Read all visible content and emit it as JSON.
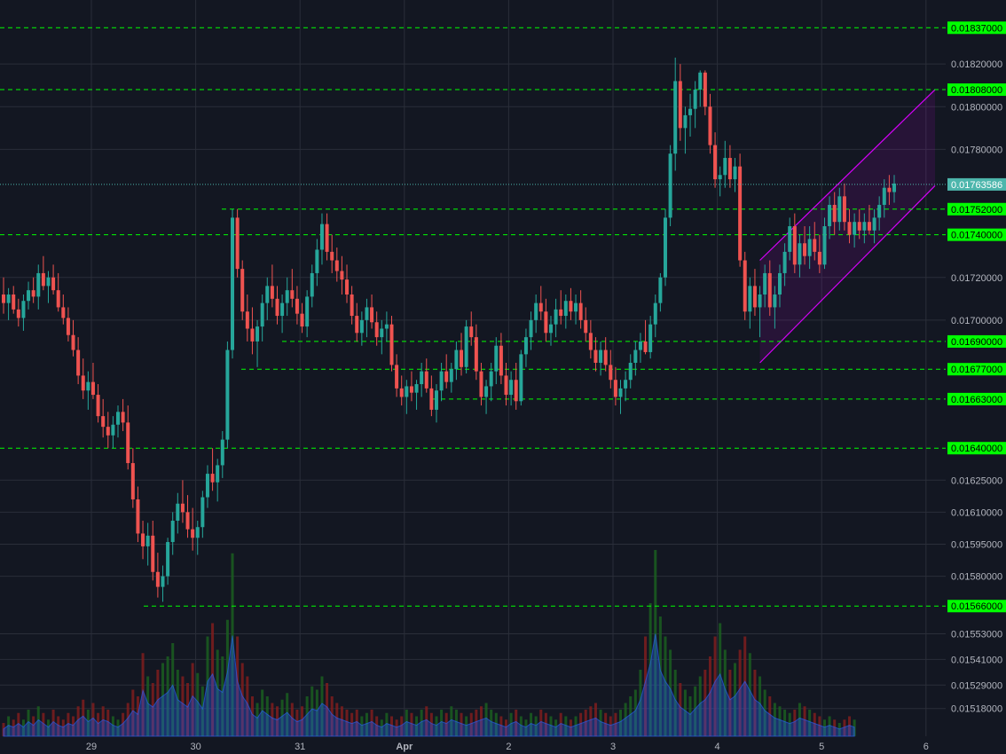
{
  "colors": {
    "background": "#131722",
    "grid": "#2a2e39",
    "axis_text": "#b2b5be",
    "up": "#26a69a",
    "down": "#ef5350",
    "level_line": "#00ff00",
    "level_label_bg": "#00ff00",
    "channel": "#d500f9",
    "price_line": "#4db6ac",
    "volume_area": "#2962ff",
    "volume_up": "#1b5e20",
    "volume_down": "#7f1d1d"
  },
  "chart_data": {
    "type": "candlestick",
    "symbol_interval_hours": 1,
    "ylim": [
      0.01505,
      0.0185
    ],
    "y_ticks": [
      "0.01820000",
      "0.01800000",
      "0.01780000",
      "0.01720000",
      "0.01700000",
      "0.01625000",
      "0.01610000",
      "0.01595000",
      "0.01580000",
      "0.01553000",
      "0.01541000",
      "0.01529000",
      "0.01518000"
    ],
    "x_ticks": [
      "29",
      "30",
      "31",
      "Apr",
      "2",
      "3",
      "4",
      "5",
      "6"
    ],
    "levels": [
      {
        "label": "0.01837000",
        "value": 0.01837
      },
      {
        "label": "0.01808000",
        "value": 0.01808
      },
      {
        "label": "0.01752000",
        "value": 0.01752
      },
      {
        "label": "0.01740000",
        "value": 0.0174
      },
      {
        "label": "0.01690000",
        "value": 0.0169
      },
      {
        "label": "0.01677000",
        "value": 0.01677
      },
      {
        "label": "0.01663000",
        "value": 0.01663
      },
      {
        "label": "0.01640000",
        "value": 0.0164
      },
      {
        "label": "0.01566000",
        "value": 0.01566
      }
    ],
    "current_price": {
      "label": "0.01763586",
      "value": 0.01763586
    },
    "channel": {
      "upper": [
        [
          0.01729,
          0.01808
        ],
        [
          0.0173,
          0.018
        ]
      ],
      "lower": [
        [
          0.0168,
          0.0176
        ],
        [
          0.0168,
          0.01763
        ]
      ]
    },
    "candles": [
      [
        0.01712,
        0.0172,
        0.01703,
        0.01708
      ],
      [
        0.01708,
        0.01715,
        0.017,
        0.01712
      ],
      [
        0.01712,
        0.01716,
        0.01703,
        0.01705
      ],
      [
        0.01705,
        0.0171,
        0.01697,
        0.01701
      ],
      [
        0.01701,
        0.01712,
        0.01695,
        0.01709
      ],
      [
        0.01709,
        0.01718,
        0.01705,
        0.01714
      ],
      [
        0.01714,
        0.0172,
        0.01708,
        0.01711
      ],
      [
        0.01711,
        0.01726,
        0.01705,
        0.01722
      ],
      [
        0.01722,
        0.0173,
        0.01714,
        0.01716
      ],
      [
        0.01716,
        0.01723,
        0.01708,
        0.0172
      ],
      [
        0.0172,
        0.01726,
        0.01712,
        0.01714
      ],
      [
        0.01714,
        0.01722,
        0.01704,
        0.01706
      ],
      [
        0.01706,
        0.01712,
        0.01698,
        0.01701
      ],
      [
        0.01701,
        0.01706,
        0.0169,
        0.01693
      ],
      [
        0.01693,
        0.017,
        0.01683,
        0.01686
      ],
      [
        0.01686,
        0.01692,
        0.0167,
        0.01674
      ],
      [
        0.01674,
        0.01682,
        0.01663,
        0.01667
      ],
      [
        0.01667,
        0.01676,
        0.01658,
        0.01671
      ],
      [
        0.01671,
        0.0168,
        0.01663,
        0.01665
      ],
      [
        0.01665,
        0.0167,
        0.01652,
        0.01655
      ],
      [
        0.01655,
        0.01663,
        0.01645,
        0.0165
      ],
      [
        0.0165,
        0.01657,
        0.0164,
        0.01646
      ],
      [
        0.01646,
        0.01655,
        0.0164,
        0.01651
      ],
      [
        0.01651,
        0.0166,
        0.01645,
        0.01657
      ],
      [
        0.01657,
        0.01663,
        0.01648,
        0.01652
      ],
      [
        0.01652,
        0.0166,
        0.0163,
        0.01633
      ],
      [
        0.01633,
        0.0164,
        0.01612,
        0.01616
      ],
      [
        0.01616,
        0.01622,
        0.01596,
        0.016
      ],
      [
        0.016,
        0.01606,
        0.01588,
        0.01594
      ],
      [
        0.01594,
        0.01605,
        0.01585,
        0.01599
      ],
      [
        0.01599,
        0.01606,
        0.01578,
        0.01582
      ],
      [
        0.01582,
        0.01591,
        0.0157,
        0.01575
      ],
      [
        0.01575,
        0.01585,
        0.01568,
        0.0158
      ],
      [
        0.0158,
        0.01598,
        0.01576,
        0.01596
      ],
      [
        0.01596,
        0.0161,
        0.0159,
        0.01606
      ],
      [
        0.01606,
        0.01619,
        0.016,
        0.01614
      ],
      [
        0.01614,
        0.01625,
        0.01605,
        0.0161
      ],
      [
        0.0161,
        0.01618,
        0.01598,
        0.01602
      ],
      [
        0.01602,
        0.01612,
        0.01592,
        0.01598
      ],
      [
        0.01598,
        0.01606,
        0.0159,
        0.01603
      ],
      [
        0.01603,
        0.0162,
        0.01598,
        0.01617
      ],
      [
        0.01617,
        0.01632,
        0.01612,
        0.01628
      ],
      [
        0.01628,
        0.0164,
        0.0162,
        0.01624
      ],
      [
        0.01624,
        0.01635,
        0.01615,
        0.01632
      ],
      [
        0.01632,
        0.01648,
        0.01626,
        0.01644
      ],
      [
        0.01644,
        0.0169,
        0.0164,
        0.01686
      ],
      [
        0.01686,
        0.01752,
        0.01682,
        0.01748
      ],
      [
        0.01748,
        0.01752,
        0.0172,
        0.01724
      ],
      [
        0.01724,
        0.01728,
        0.017,
        0.01704
      ],
      [
        0.01704,
        0.01712,
        0.0169,
        0.01696
      ],
      [
        0.01696,
        0.01706,
        0.01684,
        0.0169
      ],
      [
        0.0169,
        0.017,
        0.01678,
        0.01697
      ],
      [
        0.01697,
        0.01712,
        0.0169,
        0.01708
      ],
      [
        0.01708,
        0.0172,
        0.017,
        0.01716
      ],
      [
        0.01716,
        0.01726,
        0.01706,
        0.0171
      ],
      [
        0.0171,
        0.01716,
        0.01698,
        0.01702
      ],
      [
        0.01702,
        0.01712,
        0.01694,
        0.01708
      ],
      [
        0.01708,
        0.0172,
        0.01702,
        0.01714
      ],
      [
        0.01714,
        0.01724,
        0.01706,
        0.0171
      ],
      [
        0.0171,
        0.01716,
        0.01698,
        0.01703
      ],
      [
        0.01703,
        0.01708,
        0.01694,
        0.01697
      ],
      [
        0.01697,
        0.01714,
        0.01692,
        0.01711
      ],
      [
        0.01711,
        0.01726,
        0.01706,
        0.01722
      ],
      [
        0.01722,
        0.01738,
        0.01716,
        0.01733
      ],
      [
        0.01733,
        0.0175,
        0.01726,
        0.01745
      ],
      [
        0.01745,
        0.0175,
        0.01728,
        0.01732
      ],
      [
        0.01732,
        0.0174,
        0.01722,
        0.01728
      ],
      [
        0.01728,
        0.01734,
        0.01718,
        0.01723
      ],
      [
        0.01723,
        0.0173,
        0.01712,
        0.01719
      ],
      [
        0.01719,
        0.01726,
        0.01708,
        0.01712
      ],
      [
        0.01712,
        0.01716,
        0.01698,
        0.01702
      ],
      [
        0.01702,
        0.01708,
        0.0169,
        0.01694
      ],
      [
        0.01694,
        0.01704,
        0.01688,
        0.017
      ],
      [
        0.017,
        0.0171,
        0.01692,
        0.01706
      ],
      [
        0.01706,
        0.01712,
        0.01696,
        0.01699
      ],
      [
        0.01699,
        0.01704,
        0.01688,
        0.01692
      ],
      [
        0.01692,
        0.017,
        0.01684,
        0.01696
      ],
      [
        0.01696,
        0.01704,
        0.0169,
        0.01698
      ],
      [
        0.01698,
        0.01702,
        0.01676,
        0.01679
      ],
      [
        0.01679,
        0.01684,
        0.01664,
        0.01668
      ],
      [
        0.01668,
        0.01674,
        0.0166,
        0.01664
      ],
      [
        0.01664,
        0.01672,
        0.01656,
        0.01669
      ],
      [
        0.01669,
        0.01676,
        0.01662,
        0.01666
      ],
      [
        0.01666,
        0.01672,
        0.01658,
        0.0167
      ],
      [
        0.0167,
        0.0168,
        0.01664,
        0.01676
      ],
      [
        0.01676,
        0.01682,
        0.01666,
        0.01668
      ],
      [
        0.01668,
        0.01674,
        0.01655,
        0.01658
      ],
      [
        0.01658,
        0.0167,
        0.01652,
        0.01667
      ],
      [
        0.01667,
        0.0168,
        0.01662,
        0.01676
      ],
      [
        0.01676,
        0.01684,
        0.01668,
        0.01671
      ],
      [
        0.01671,
        0.0168,
        0.01666,
        0.01677
      ],
      [
        0.01677,
        0.0169,
        0.01672,
        0.01686
      ],
      [
        0.01686,
        0.01694,
        0.01674,
        0.01678
      ],
      [
        0.01678,
        0.017,
        0.01675,
        0.01697
      ],
      [
        0.01697,
        0.01704,
        0.01688,
        0.01692
      ],
      [
        0.01692,
        0.01698,
        0.01672,
        0.01676
      ],
      [
        0.01676,
        0.0168,
        0.0166,
        0.01664
      ],
      [
        0.01664,
        0.01672,
        0.01656,
        0.01669
      ],
      [
        0.01669,
        0.0168,
        0.01662,
        0.01676
      ],
      [
        0.01676,
        0.01692,
        0.0167,
        0.01688
      ],
      [
        0.01688,
        0.01694,
        0.0167,
        0.01674
      ],
      [
        0.01674,
        0.0168,
        0.0166,
        0.01665
      ],
      [
        0.01665,
        0.01676,
        0.0166,
        0.01672
      ],
      [
        0.01672,
        0.0168,
        0.01658,
        0.01662
      ],
      [
        0.01662,
        0.01686,
        0.0166,
        0.01684
      ],
      [
        0.01684,
        0.01696,
        0.01678,
        0.01692
      ],
      [
        0.01692,
        0.01704,
        0.01686,
        0.017
      ],
      [
        0.017,
        0.01712,
        0.01694,
        0.01708
      ],
      [
        0.01708,
        0.01716,
        0.017,
        0.01704
      ],
      [
        0.01704,
        0.0171,
        0.0169,
        0.01694
      ],
      [
        0.01694,
        0.01702,
        0.01688,
        0.01698
      ],
      [
        0.01698,
        0.0171,
        0.01692,
        0.01705
      ],
      [
        0.01705,
        0.01714,
        0.01698,
        0.01702
      ],
      [
        0.01702,
        0.01712,
        0.01696,
        0.01709
      ],
      [
        0.01709,
        0.01715,
        0.017,
        0.01704
      ],
      [
        0.01704,
        0.01712,
        0.01698,
        0.01708
      ],
      [
        0.01708,
        0.01714,
        0.01696,
        0.017
      ],
      [
        0.017,
        0.01706,
        0.0169,
        0.01694
      ],
      [
        0.01694,
        0.017,
        0.01682,
        0.01686
      ],
      [
        0.01686,
        0.01692,
        0.01676,
        0.0168
      ],
      [
        0.0168,
        0.0169,
        0.01674,
        0.01686
      ],
      [
        0.01686,
        0.01692,
        0.01676,
        0.01679
      ],
      [
        0.01679,
        0.01686,
        0.01668,
        0.01672
      ],
      [
        0.01672,
        0.01678,
        0.0166,
        0.01664
      ],
      [
        0.01664,
        0.01672,
        0.01656,
        0.01668
      ],
      [
        0.01668,
        0.01676,
        0.01662,
        0.01672
      ],
      [
        0.01672,
        0.01684,
        0.01668,
        0.0168
      ],
      [
        0.0168,
        0.0169,
        0.01674,
        0.01686
      ],
      [
        0.01686,
        0.01694,
        0.0168,
        0.0169
      ],
      [
        0.0169,
        0.017,
        0.01684,
        0.01685
      ],
      [
        0.01685,
        0.01702,
        0.01682,
        0.01698
      ],
      [
        0.01698,
        0.01712,
        0.01692,
        0.01708
      ],
      [
        0.01708,
        0.01722,
        0.01704,
        0.0172
      ],
      [
        0.0172,
        0.01752,
        0.01716,
        0.01748
      ],
      [
        0.01748,
        0.01782,
        0.01744,
        0.01778
      ],
      [
        0.01778,
        0.01823,
        0.0177,
        0.01812
      ],
      [
        0.01812,
        0.0182,
        0.01784,
        0.0179
      ],
      [
        0.0179,
        0.018,
        0.01778,
        0.01796
      ],
      [
        0.01796,
        0.01806,
        0.01786,
        0.01799
      ],
      [
        0.01799,
        0.01812,
        0.0179,
        0.01808
      ],
      [
        0.01808,
        0.01817,
        0.018,
        0.01816
      ],
      [
        0.01816,
        0.01817,
        0.01796,
        0.018
      ],
      [
        0.018,
        0.01806,
        0.01778,
        0.01782
      ],
      [
        0.01782,
        0.01788,
        0.01762,
        0.01766
      ],
      [
        0.01766,
        0.01772,
        0.01758,
        0.01768
      ],
      [
        0.01768,
        0.01784,
        0.01762,
        0.01776
      ],
      [
        0.01776,
        0.01782,
        0.01762,
        0.01766
      ],
      [
        0.01766,
        0.01776,
        0.0176,
        0.01772
      ],
      [
        0.01772,
        0.01778,
        0.01725,
        0.01728
      ],
      [
        0.01728,
        0.01732,
        0.017,
        0.01704
      ],
      [
        0.01704,
        0.0172,
        0.01696,
        0.01716
      ],
      [
        0.01716,
        0.01724,
        0.01702,
        0.01706
      ],
      [
        0.01706,
        0.01716,
        0.01692,
        0.01712
      ],
      [
        0.01712,
        0.01726,
        0.01706,
        0.01722
      ],
      [
        0.01722,
        0.01728,
        0.01702,
        0.01706
      ],
      [
        0.01706,
        0.01716,
        0.01696,
        0.01712
      ],
      [
        0.01712,
        0.01726,
        0.01706,
        0.01722
      ],
      [
        0.01722,
        0.01736,
        0.01716,
        0.01732
      ],
      [
        0.01732,
        0.01748,
        0.01728,
        0.01744
      ],
      [
        0.01744,
        0.0175,
        0.01722,
        0.01726
      ],
      [
        0.01726,
        0.0174,
        0.0172,
        0.01736
      ],
      [
        0.01736,
        0.01744,
        0.01726,
        0.0173
      ],
      [
        0.0173,
        0.01744,
        0.01724,
        0.01738
      ],
      [
        0.01738,
        0.01746,
        0.01728,
        0.01732
      ],
      [
        0.01732,
        0.0174,
        0.01722,
        0.01726
      ],
      [
        0.01726,
        0.01748,
        0.01724,
        0.01744
      ],
      [
        0.01744,
        0.01758,
        0.01738,
        0.01754
      ],
      [
        0.01754,
        0.0176,
        0.0174,
        0.01746
      ],
      [
        0.01746,
        0.01762,
        0.01742,
        0.01758
      ],
      [
        0.01758,
        0.01764,
        0.01742,
        0.01746
      ],
      [
        0.01746,
        0.01752,
        0.01736,
        0.0174
      ],
      [
        0.0174,
        0.0175,
        0.01734,
        0.01746
      ],
      [
        0.01746,
        0.01752,
        0.01738,
        0.01742
      ],
      [
        0.01742,
        0.0175,
        0.01736,
        0.01746
      ],
      [
        0.01746,
        0.01754,
        0.0174,
        0.01742
      ],
      [
        0.01742,
        0.01752,
        0.01736,
        0.01748
      ],
      [
        0.01748,
        0.01758,
        0.01742,
        0.01754
      ],
      [
        0.01754,
        0.01766,
        0.01748,
        0.01762
      ],
      [
        0.01762,
        0.01768,
        0.01754,
        0.0176
      ],
      [
        0.0176,
        0.01768,
        0.01755,
        0.01764
      ]
    ],
    "volumes": [
      0.04,
      0.06,
      0.05,
      0.07,
      0.05,
      0.08,
      0.06,
      0.09,
      0.07,
      0.05,
      0.08,
      0.06,
      0.05,
      0.07,
      0.06,
      0.09,
      0.11,
      0.08,
      0.1,
      0.07,
      0.09,
      0.08,
      0.06,
      0.05,
      0.07,
      0.1,
      0.14,
      0.12,
      0.25,
      0.18,
      0.16,
      0.2,
      0.22,
      0.24,
      0.28,
      0.2,
      0.18,
      0.16,
      0.22,
      0.19,
      0.15,
      0.3,
      0.34,
      0.26,
      0.24,
      0.35,
      0.55,
      0.3,
      0.22,
      0.18,
      0.12,
      0.1,
      0.14,
      0.12,
      0.1,
      0.09,
      0.11,
      0.13,
      0.1,
      0.08,
      0.09,
      0.12,
      0.15,
      0.14,
      0.18,
      0.16,
      0.12,
      0.1,
      0.09,
      0.08,
      0.07,
      0.08,
      0.06,
      0.07,
      0.08,
      0.06,
      0.05,
      0.07,
      0.06,
      0.05,
      0.06,
      0.08,
      0.07,
      0.06,
      0.08,
      0.09,
      0.07,
      0.06,
      0.08,
      0.07,
      0.09,
      0.08,
      0.07,
      0.06,
      0.07,
      0.08,
      0.09,
      0.1,
      0.08,
      0.07,
      0.06,
      0.05,
      0.07,
      0.08,
      0.06,
      0.05,
      0.07,
      0.06,
      0.08,
      0.07,
      0.06,
      0.05,
      0.07,
      0.06,
      0.05,
      0.06,
      0.07,
      0.08,
      0.09,
      0.1,
      0.08,
      0.07,
      0.06,
      0.07,
      0.08,
      0.1,
      0.12,
      0.14,
      0.2,
      0.3,
      0.4,
      0.56,
      0.36,
      0.3,
      0.26,
      0.2,
      0.16,
      0.14,
      0.12,
      0.15,
      0.18,
      0.2,
      0.24,
      0.3,
      0.34,
      0.26,
      0.2,
      0.22,
      0.26,
      0.3,
      0.25,
      0.2,
      0.18,
      0.14,
      0.12,
      0.1,
      0.09,
      0.08,
      0.07,
      0.08,
      0.1,
      0.09,
      0.08,
      0.07,
      0.06,
      0.05,
      0.06,
      0.05,
      0.04,
      0.05,
      0.06,
      0.05
    ]
  }
}
